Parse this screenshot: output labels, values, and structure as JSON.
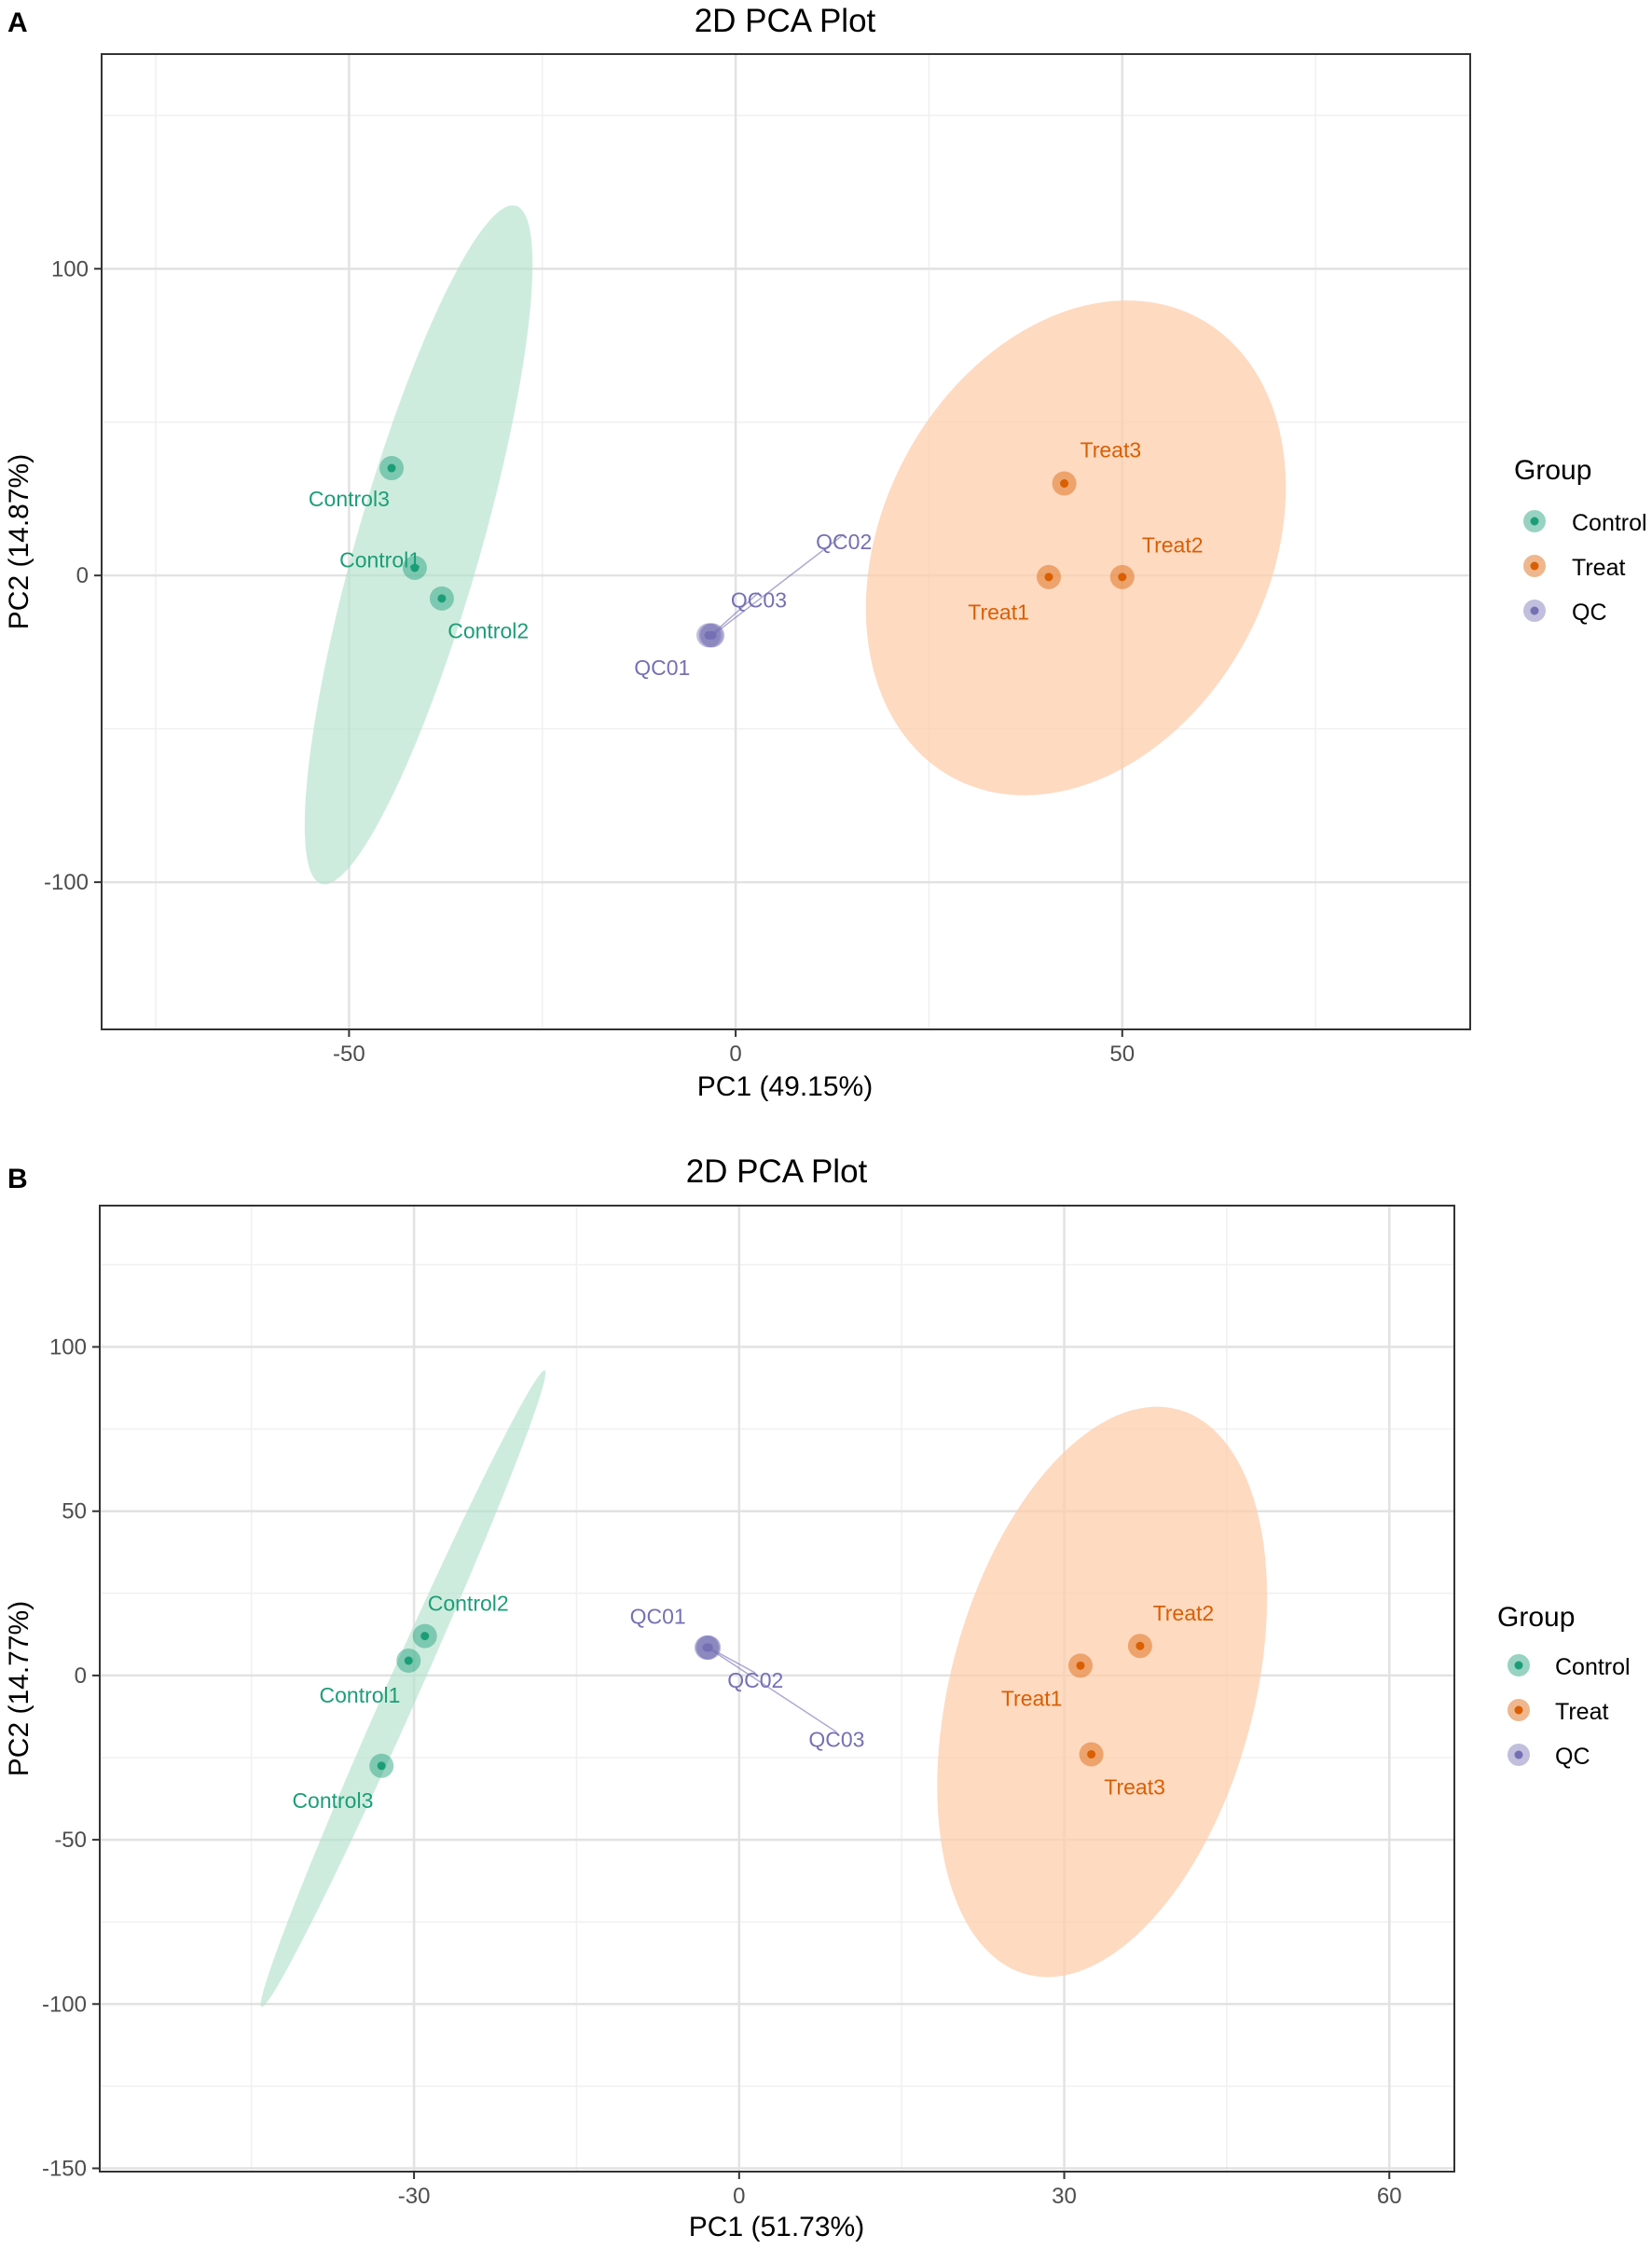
{
  "colors": {
    "control": "#1b9e77",
    "treat": "#d95f02",
    "qc": "#7570b3",
    "control_fill": "#b3e2cd",
    "treat_fill": "#fdcdac"
  },
  "chart_data": [
    {
      "panel_label": "A",
      "type": "scatter",
      "title": "2D PCA Plot",
      "xlabel": "PC1 (49.15%)",
      "ylabel": "PC2 (14.87%)",
      "xlim": [
        -82,
        95
      ],
      "ylim": [
        -148,
        170
      ],
      "xticks": [
        -50,
        0,
        50
      ],
      "yticks": [
        -100,
        0,
        100
      ],
      "xminor": [
        -75,
        -25,
        25,
        75
      ],
      "yminor": [
        -50,
        50,
        150
      ],
      "legend_title": "Group",
      "legend": [
        {
          "label": "Control",
          "group": "control"
        },
        {
          "label": "Treat",
          "group": "treat"
        },
        {
          "label": "QC",
          "group": "qc"
        }
      ],
      "ellipses": [
        {
          "group": "control",
          "cx": -41,
          "cy": 10,
          "rx_data": 8,
          "ry_data": 115,
          "angle_deg": 16
        },
        {
          "group": "treat",
          "cx": 44,
          "cy": 9,
          "rx_data": 25,
          "ry_data": 85,
          "angle_deg": 28
        }
      ],
      "points": [
        {
          "label": "Control1",
          "group": "control",
          "x": -41.5,
          "y": 2.5,
          "lx": -46,
          "ly": 5
        },
        {
          "label": "Control2",
          "group": "control",
          "x": -38,
          "y": -7.5,
          "lx": -32,
          "ly": -18
        },
        {
          "label": "Control3",
          "group": "control",
          "x": -44.5,
          "y": 35,
          "lx": -50,
          "ly": 25
        },
        {
          "label": "QC01",
          "group": "qc",
          "x": -3.5,
          "y": -19.5,
          "lx": -9.5,
          "ly": -30
        },
        {
          "label": "QC02",
          "group": "qc",
          "x": -3,
          "y": -19.5,
          "lx": 14,
          "ly": 11,
          "line": true
        },
        {
          "label": "QC03",
          "group": "qc",
          "x": -3.2,
          "y": -19.5,
          "lx": 3,
          "ly": -8,
          "line": true
        },
        {
          "label": "Treat1",
          "group": "treat",
          "x": 40.5,
          "y": -0.5,
          "lx": 34,
          "ly": -12
        },
        {
          "label": "Treat2",
          "group": "treat",
          "x": 50,
          "y": -0.5,
          "lx": 56.5,
          "ly": 10
        },
        {
          "label": "Treat3",
          "group": "treat",
          "x": 42.5,
          "y": 30,
          "lx": 48.5,
          "ly": 41
        }
      ]
    },
    {
      "panel_label": "B",
      "type": "scatter",
      "title": "2D PCA Plot",
      "xlabel": "PC1 (51.73%)",
      "ylabel": "PC2 (14.77%)",
      "xlim": [
        -59,
        66
      ],
      "ylim": [
        -151,
        143
      ],
      "xticks": [
        -30,
        0,
        30,
        60
      ],
      "yticks": [
        -150,
        -100,
        -50,
        0,
        50,
        100
      ],
      "xminor": [
        -45,
        -15,
        15,
        45
      ],
      "yminor": [
        -125,
        -75,
        -25,
        25,
        75,
        125
      ],
      "legend_title": "Group",
      "legend": [
        {
          "label": "Control",
          "group": "control"
        },
        {
          "label": "Treat",
          "group": "treat"
        },
        {
          "label": "QC",
          "group": "qc"
        }
      ],
      "ellipses": [
        {
          "group": "control",
          "cx": -31,
          "cy": -4,
          "rx_data": 1.5,
          "ry_data": 106,
          "angle_deg": 24
        },
        {
          "group": "treat",
          "cx": 33.5,
          "cy": -5,
          "rx_data": 14,
          "ry_data": 89,
          "angle_deg": 15
        }
      ],
      "points": [
        {
          "label": "Control1",
          "group": "control",
          "x": -30.5,
          "y": 4.5,
          "lx": -35,
          "ly": -6
        },
        {
          "label": "Control2",
          "group": "control",
          "x": -29,
          "y": 12,
          "lx": -25,
          "ly": 22
        },
        {
          "label": "Control3",
          "group": "control",
          "x": -33,
          "y": -27.5,
          "lx": -37.5,
          "ly": -38
        },
        {
          "label": "QC01",
          "group": "qc",
          "x": -3,
          "y": 8.5,
          "lx": -7.5,
          "ly": 18
        },
        {
          "label": "QC02",
          "group": "qc",
          "x": -2.8,
          "y": 8.5,
          "lx": 1.5,
          "ly": -1.5,
          "line": true
        },
        {
          "label": "QC03",
          "group": "qc",
          "x": -2.9,
          "y": 8.5,
          "lx": 9,
          "ly": -19.5,
          "line": true
        },
        {
          "label": "Treat1",
          "group": "treat",
          "x": 31.5,
          "y": 3,
          "lx": 27,
          "ly": -7
        },
        {
          "label": "Treat2",
          "group": "treat",
          "x": 37,
          "y": 9,
          "lx": 41,
          "ly": 19
        },
        {
          "label": "Treat3",
          "group": "treat",
          "x": 32.5,
          "y": -24,
          "lx": 36.5,
          "ly": -34
        }
      ]
    }
  ]
}
